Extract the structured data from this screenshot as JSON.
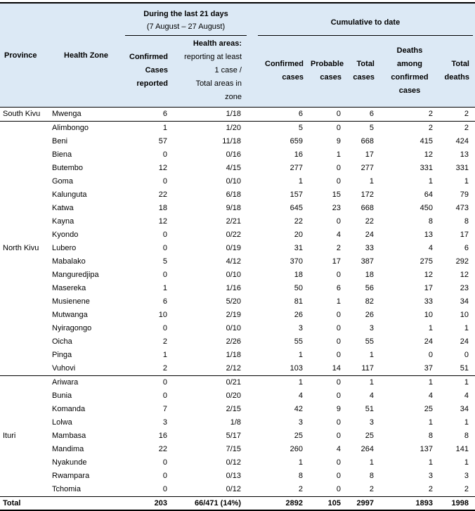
{
  "colors": {
    "header_bg": "#dce9f5",
    "border": "#000000",
    "text": "#000000"
  },
  "header": {
    "province": "Province",
    "health_zone": "Health Zone",
    "group_last21": {
      "line1": "During the last 21 days",
      "line2": "(7 August – 27 August)"
    },
    "group_cumulative": "Cumulative to date",
    "col_confirmed_reported": "Confirmed\nCases\nreported",
    "col_health_areas_title": "Health areas:",
    "col_health_areas_rest": "reporting at least\n1 case /\nTotal areas in\nzone",
    "col_confirmed": "Confirmed\ncases",
    "col_probable": "Probable\ncases",
    "col_total_cases": "Total\ncases",
    "col_deaths_confirmed": "Deaths\namong\nconfirmed\ncases",
    "col_total_deaths": "Total\ndeaths"
  },
  "groups": [
    {
      "province": "South Kivu",
      "rows": [
        [
          "Mwenga",
          "6",
          "1/18",
          "6",
          "0",
          "6",
          "2",
          "2"
        ]
      ]
    },
    {
      "province": "North Kivu",
      "rows": [
        [
          "Alimbongo",
          "1",
          "1/20",
          "5",
          "0",
          "5",
          "2",
          "2"
        ],
        [
          "Beni",
          "57",
          "11/18",
          "659",
          "9",
          "668",
          "415",
          "424"
        ],
        [
          "Biena",
          "0",
          "0/16",
          "16",
          "1",
          "17",
          "12",
          "13"
        ],
        [
          "Butembo",
          "12",
          "4/15",
          "277",
          "0",
          "277",
          "331",
          "331"
        ],
        [
          "Goma",
          "0",
          "0/10",
          "1",
          "0",
          "1",
          "1",
          "1"
        ],
        [
          "Kalunguta",
          "22",
          "6/18",
          "157",
          "15",
          "172",
          "64",
          "79"
        ],
        [
          "Katwa",
          "18",
          "9/18",
          "645",
          "23",
          "668",
          "450",
          "473"
        ],
        [
          "Kayna",
          "12",
          "2/21",
          "22",
          "0",
          "22",
          "8",
          "8"
        ],
        [
          "Kyondo",
          "0",
          "0/22",
          "20",
          "4",
          "24",
          "13",
          "17"
        ],
        [
          "Lubero",
          "0",
          "0/19",
          "31",
          "2",
          "33",
          "4",
          "6"
        ],
        [
          "Mabalako",
          "5",
          "4/12",
          "370",
          "17",
          "387",
          "275",
          "292"
        ],
        [
          "Manguredjipa",
          "0",
          "0/10",
          "18",
          "0",
          "18",
          "12",
          "12"
        ],
        [
          "Masereka",
          "1",
          "1/16",
          "50",
          "6",
          "56",
          "17",
          "23"
        ],
        [
          "Musienene",
          "6",
          "5/20",
          "81",
          "1",
          "82",
          "33",
          "34"
        ],
        [
          "Mutwanga",
          "10",
          "2/19",
          "26",
          "0",
          "26",
          "10",
          "10"
        ],
        [
          "Nyiragongo",
          "0",
          "0/10",
          "3",
          "0",
          "3",
          "1",
          "1"
        ],
        [
          "Oicha",
          "2",
          "2/26",
          "55",
          "0",
          "55",
          "24",
          "24"
        ],
        [
          "Pinga",
          "1",
          "1/18",
          "1",
          "0",
          "1",
          "0",
          "0"
        ],
        [
          "Vuhovi",
          "2",
          "2/12",
          "103",
          "14",
          "117",
          "37",
          "51"
        ]
      ]
    },
    {
      "province": "Ituri",
      "rows": [
        [
          "Ariwara",
          "0",
          "0/21",
          "1",
          "0",
          "1",
          "1",
          "1"
        ],
        [
          "Bunia",
          "0",
          "0/20",
          "4",
          "0",
          "4",
          "4",
          "4"
        ],
        [
          "Komanda",
          "7",
          "2/15",
          "42",
          "9",
          "51",
          "25",
          "34"
        ],
        [
          "Lolwa",
          "3",
          "1/8",
          "3",
          "0",
          "3",
          "1",
          "1"
        ],
        [
          "Mambasa",
          "16",
          "5/17",
          "25",
          "0",
          "25",
          "8",
          "8"
        ],
        [
          "Mandima",
          "22",
          "7/15",
          "260",
          "4",
          "264",
          "137",
          "141"
        ],
        [
          "Nyakunde",
          "0",
          "0/12",
          "1",
          "0",
          "1",
          "1",
          "1"
        ],
        [
          "Rwampara",
          "0",
          "0/13",
          "8",
          "0",
          "8",
          "3",
          "3"
        ],
        [
          "Tchomia",
          "0",
          "0/12",
          "2",
          "0",
          "2",
          "2",
          "2"
        ]
      ]
    }
  ],
  "total_row": {
    "label": "Total",
    "values": [
      "203",
      "66/471 (14%)",
      "2892",
      "105",
      "2997",
      "1893",
      "1998"
    ]
  }
}
